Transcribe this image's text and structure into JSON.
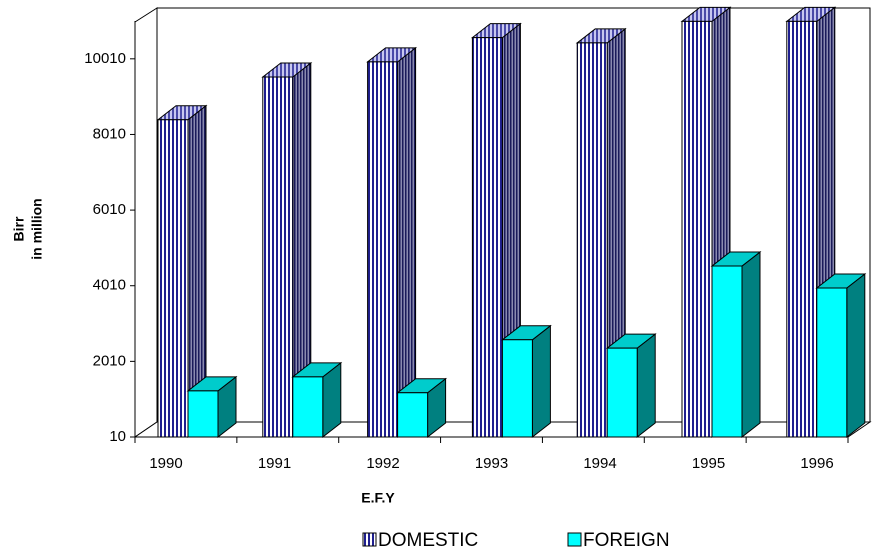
{
  "chart_data": {
    "type": "bar3d",
    "xlabel": "E.F.Y",
    "ylabel": [
      "Birr",
      "in million"
    ],
    "categories": [
      "1990",
      "1991",
      "1992",
      "1993",
      "1994",
      "1995",
      "1996"
    ],
    "series": [
      {
        "name": "DOMESTIC",
        "color": "#1f1f8f",
        "values": [
          8400,
          9530,
          9930,
          10570,
          10430,
          11000,
          11000
        ]
      },
      {
        "name": "FOREIGN",
        "color": "#00ffff",
        "values": [
          1230,
          1600,
          1180,
          2580,
          2360,
          4530,
          3950
        ]
      }
    ],
    "ylim": [
      10,
      11010
    ],
    "yticks": [
      10,
      2010,
      4010,
      6010,
      8010,
      10010
    ],
    "legend": "bottom"
  }
}
